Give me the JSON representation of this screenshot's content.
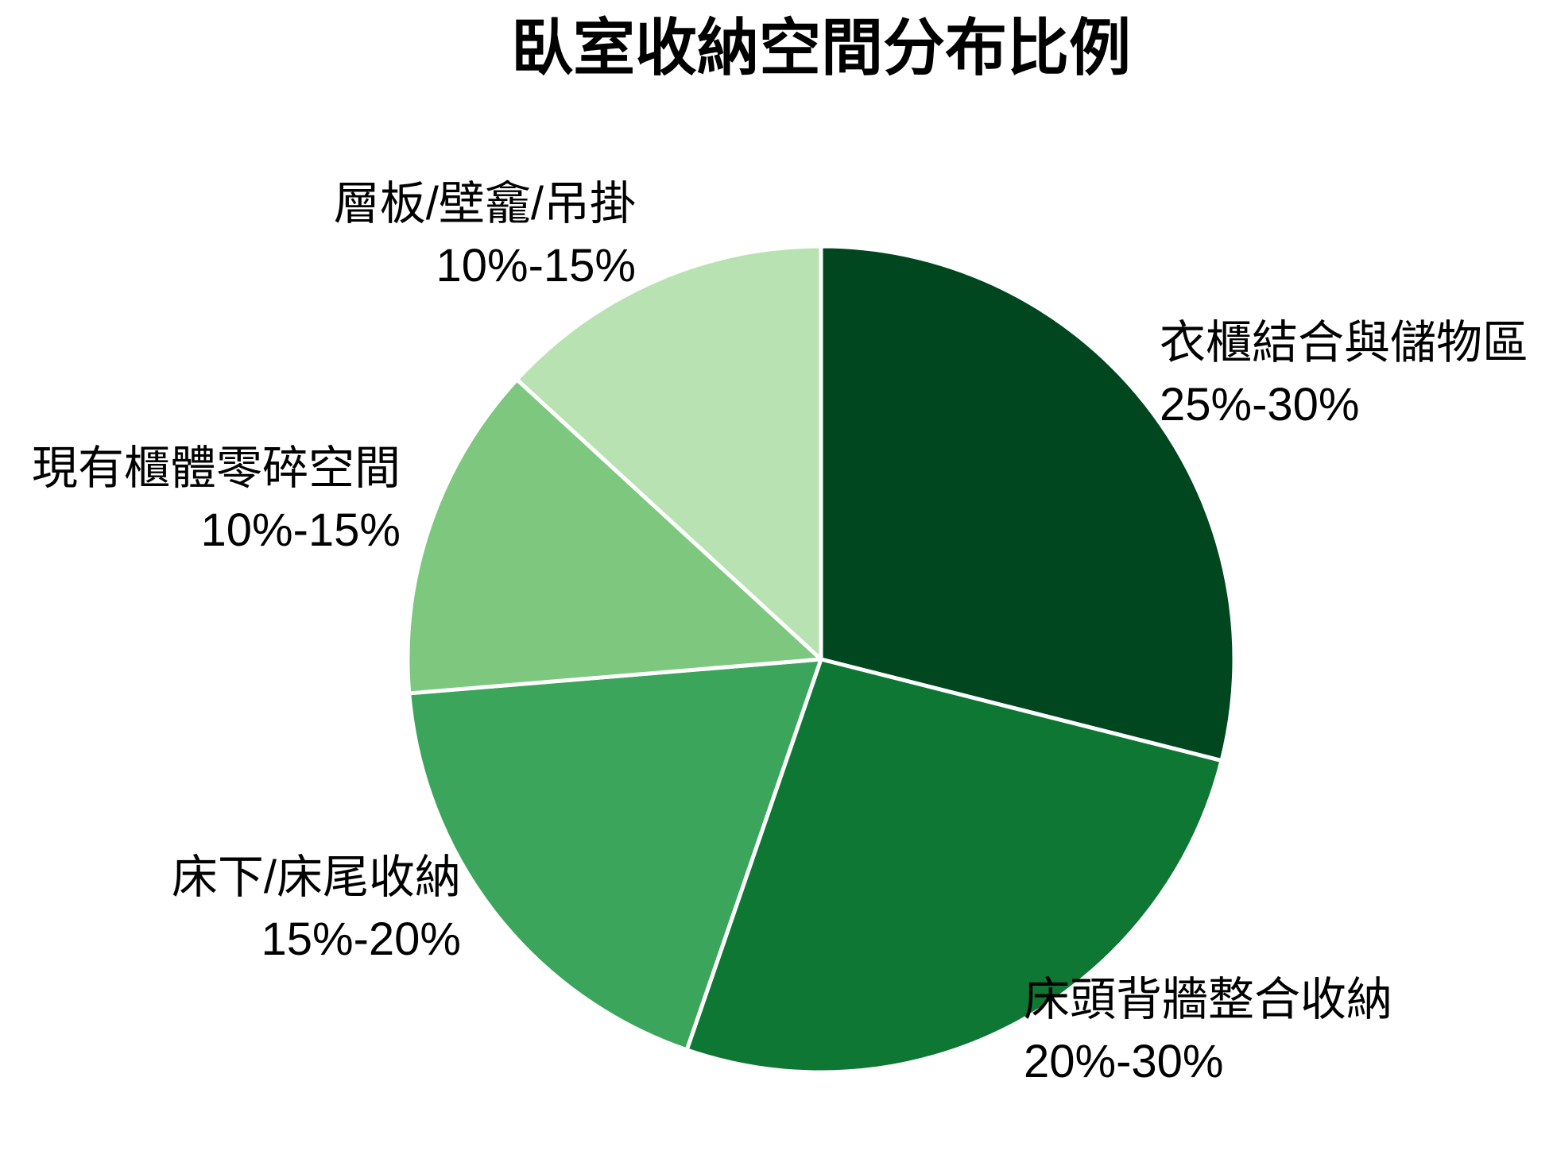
{
  "title": "臥室收納空間分布比例",
  "chart_data": {
    "type": "pie",
    "title": "臥室收納空間分布比例",
    "start_angle_deg": 0,
    "direction": "clockwise",
    "legend_position": "none",
    "background_color": "#ffffff",
    "text_color": "#000000",
    "slice_border_color": "#ffffff",
    "slices": [
      {
        "label": "衣櫃結合與儲物區",
        "range": "25%-30%",
        "value": 27.5,
        "color": "#00471f"
      },
      {
        "label": "床頭背牆整合收納",
        "range": "20%-30%",
        "value": 25.0,
        "color": "#0e7734"
      },
      {
        "label": "床下/床尾收納",
        "range": "15%-20%",
        "value": 17.5,
        "color": "#3ca55c"
      },
      {
        "label": "現有櫃體零碎空間",
        "range": "10%-15%",
        "value": 12.5,
        "color": "#7dc87e"
      },
      {
        "label": "層板/壁龕/吊掛",
        "range": "10%-15%",
        "value": 12.5,
        "color": "#b8e2b2"
      }
    ]
  }
}
